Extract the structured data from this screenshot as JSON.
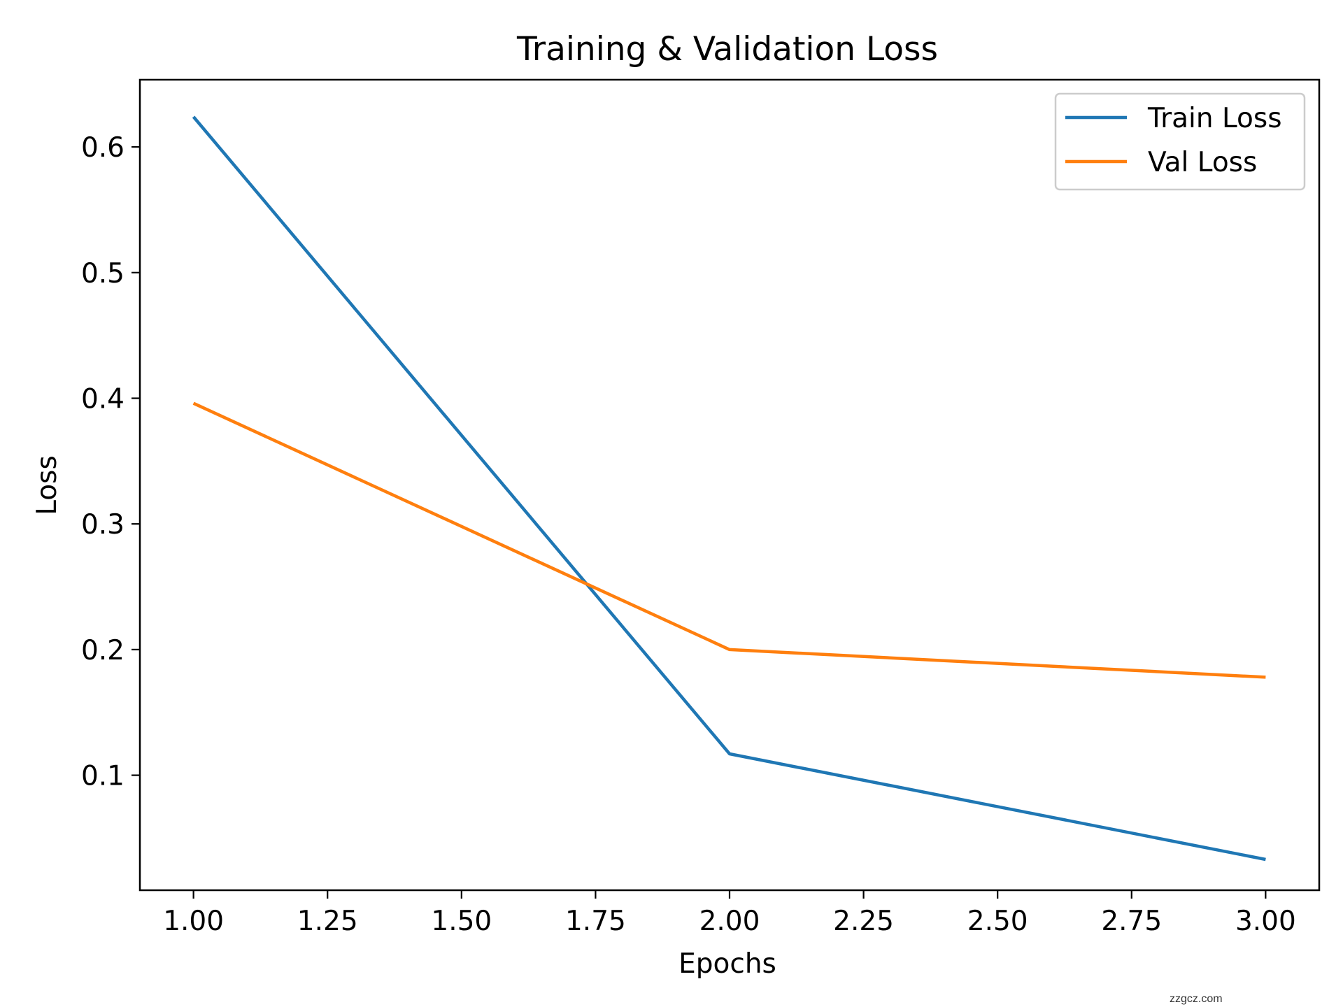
{
  "chart_data": {
    "type": "line",
    "title": "Training & Validation Loss",
    "xlabel": "Epochs",
    "ylabel": "Loss",
    "xlim": [
      0.9,
      3.1
    ],
    "ylim": [
      0.0085,
      0.6535
    ],
    "x_ticks": [
      1.0,
      1.25,
      1.5,
      1.75,
      2.0,
      2.25,
      2.5,
      2.75,
      3.0
    ],
    "x_tick_labels": [
      "1.00",
      "1.25",
      "1.50",
      "1.75",
      "2.00",
      "2.25",
      "2.50",
      "2.75",
      "3.00"
    ],
    "y_ticks": [
      0.1,
      0.2,
      0.3,
      0.4,
      0.5,
      0.6
    ],
    "y_tick_labels": [
      "0.1",
      "0.2",
      "0.3",
      "0.4",
      "0.5",
      "0.6"
    ],
    "x": [
      1,
      2,
      3
    ],
    "series": [
      {
        "name": "Train Loss",
        "values": [
          0.624,
          0.117,
          0.033
        ],
        "color": "#1f77b4"
      },
      {
        "name": "Val Loss",
        "values": [
          0.396,
          0.2,
          0.178
        ],
        "color": "#ff7f0e"
      }
    ],
    "legend_position": "top-right",
    "grid": false
  },
  "watermark": "zzgcz.com"
}
